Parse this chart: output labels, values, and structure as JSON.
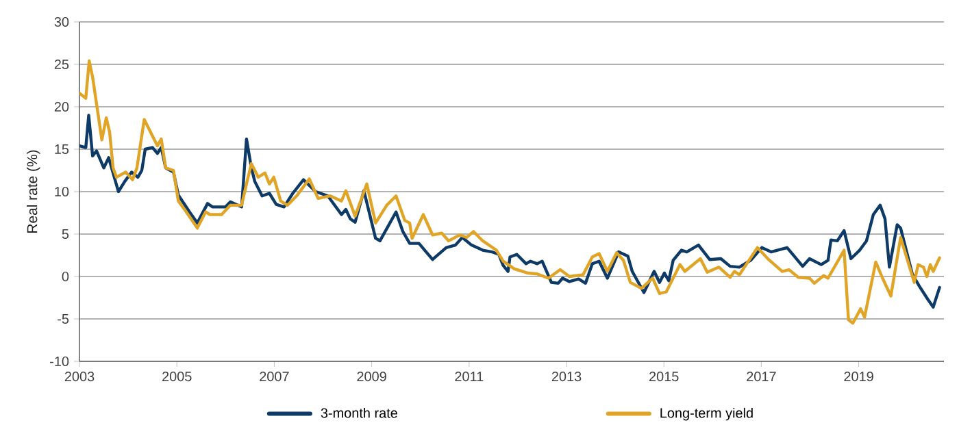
{
  "chart_data": {
    "type": "line",
    "ylabel": "Real rate (%)",
    "xlim": [
      2003,
      2020.75
    ],
    "xticks": [
      2003,
      2005,
      2007,
      2009,
      2011,
      2013,
      2015,
      2017,
      2019
    ],
    "ylim": [
      -10,
      30
    ],
    "yticks": [
      -10,
      -5,
      0,
      5,
      10,
      15,
      20,
      25,
      30
    ],
    "grid": "y",
    "legend": "bottom",
    "line_style": "solid",
    "series": [
      {
        "name": "3-month rate",
        "color": "#0d3a66",
        "x": [
          2003.0,
          2003.13,
          2003.19,
          2003.27,
          2003.35,
          2003.5,
          2003.6,
          2003.8,
          2003.93,
          2004.07,
          2004.2,
          2004.28,
          2004.35,
          2004.5,
          2004.6,
          2004.68,
          2004.77,
          2004.93,
          2005.03,
          2005.26,
          2005.42,
          2005.63,
          2005.73,
          2006.0,
          2006.1,
          2006.33,
          2006.43,
          2006.53,
          2006.6,
          2006.75,
          2006.9,
          2007.04,
          2007.2,
          2007.38,
          2007.6,
          2007.85,
          2008.1,
          2008.38,
          2008.47,
          2008.56,
          2008.66,
          2008.84,
          2009.08,
          2009.17,
          2009.5,
          2009.64,
          2009.78,
          2009.97,
          2010.25,
          2010.53,
          2010.72,
          2010.86,
          2011.05,
          2011.28,
          2011.47,
          2011.61,
          2011.7,
          2011.8,
          2011.84,
          2011.98,
          2012.17,
          2012.26,
          2012.4,
          2012.5,
          2012.69,
          2012.83,
          2012.92,
          2013.06,
          2013.25,
          2013.39,
          2013.53,
          2013.67,
          2013.84,
          2014.07,
          2014.26,
          2014.35,
          2014.59,
          2014.8,
          2014.91,
          2015.01,
          2015.1,
          2015.19,
          2015.36,
          2015.47,
          2015.71,
          2015.94,
          2016.17,
          2016.36,
          2016.55,
          2016.78,
          2017.01,
          2017.2,
          2017.53,
          2017.85,
          2017.99,
          2018.23,
          2018.37,
          2018.43,
          2018.56,
          2018.7,
          2018.84,
          2019.02,
          2019.16,
          2019.3,
          2019.44,
          2019.54,
          2019.63,
          2019.79,
          2019.86,
          2020.1,
          2020.24,
          2020.42,
          2020.53,
          2020.66
        ],
        "values": [
          15.4,
          15.2,
          19.0,
          14.2,
          14.8,
          12.8,
          14.0,
          10.0,
          11.2,
          12.3,
          11.7,
          12.5,
          15.0,
          15.2,
          14.5,
          15.2,
          12.8,
          12.3,
          9.6,
          7.6,
          6.3,
          8.6,
          8.2,
          8.2,
          8.8,
          8.2,
          16.2,
          12.8,
          11.2,
          9.5,
          9.8,
          8.5,
          8.2,
          9.8,
          11.4,
          10.0,
          9.5,
          7.3,
          7.9,
          6.8,
          6.4,
          10.1,
          4.5,
          4.2,
          7.6,
          5.3,
          3.9,
          3.9,
          2.0,
          3.4,
          3.7,
          4.6,
          3.7,
          3.1,
          2.9,
          2.6,
          1.3,
          0.6,
          2.3,
          2.6,
          1.5,
          1.8,
          1.5,
          1.8,
          -0.7,
          -0.8,
          -0.2,
          -0.6,
          -0.3,
          -0.8,
          1.5,
          1.8,
          -0.2,
          2.9,
          2.4,
          0.6,
          -1.9,
          0.6,
          -0.7,
          0.4,
          -0.5,
          1.9,
          3.1,
          2.9,
          3.7,
          2.0,
          2.1,
          1.2,
          1.1,
          1.9,
          3.4,
          2.9,
          3.4,
          1.2,
          2.1,
          1.4,
          1.9,
          4.3,
          4.2,
          5.4,
          2.1,
          3.1,
          4.2,
          7.3,
          8.4,
          6.8,
          1.1,
          6.1,
          5.7,
          0.3,
          -1.1,
          -2.7,
          -3.6,
          -1.3
        ]
      },
      {
        "name": "Long-term yield",
        "color": "#e0a526",
        "x": [
          2003.0,
          2003.13,
          2003.2,
          2003.27,
          2003.37,
          2003.46,
          2003.55,
          2003.62,
          2003.69,
          2003.76,
          2003.95,
          2004.09,
          2004.18,
          2004.33,
          2004.47,
          2004.6,
          2004.68,
          2004.77,
          2004.93,
          2005.03,
          2005.17,
          2005.42,
          2005.59,
          2005.68,
          2005.92,
          2006.1,
          2006.33,
          2006.43,
          2006.53,
          2006.67,
          2006.81,
          2006.9,
          2006.99,
          2007.13,
          2007.27,
          2007.46,
          2007.72,
          2007.9,
          2008.15,
          2008.38,
          2008.47,
          2008.66,
          2008.9,
          2009.08,
          2009.31,
          2009.5,
          2009.68,
          2009.78,
          2009.83,
          2010.06,
          2010.25,
          2010.44,
          2010.58,
          2010.81,
          2010.95,
          2011.09,
          2011.28,
          2011.56,
          2011.7,
          2011.93,
          2012.21,
          2012.4,
          2012.63,
          2012.87,
          2013.06,
          2013.34,
          2013.53,
          2013.67,
          2013.84,
          2014.03,
          2014.17,
          2014.31,
          2014.54,
          2014.77,
          2014.91,
          2015.05,
          2015.33,
          2015.43,
          2015.75,
          2015.89,
          2016.13,
          2016.36,
          2016.45,
          2016.55,
          2016.92,
          2017.15,
          2017.43,
          2017.57,
          2017.76,
          2017.99,
          2018.09,
          2018.28,
          2018.37,
          2018.7,
          2018.79,
          2018.88,
          2019.04,
          2019.12,
          2019.35,
          2019.49,
          2019.66,
          2019.86,
          2020.14,
          2020.22,
          2020.33,
          2020.4,
          2020.47,
          2020.53,
          2020.66
        ],
        "values": [
          21.6,
          21.0,
          25.4,
          23.5,
          19.6,
          16.1,
          18.7,
          17.0,
          12.8,
          11.7,
          12.3,
          11.4,
          12.8,
          18.5,
          16.9,
          15.4,
          16.2,
          12.8,
          12.5,
          8.9,
          7.8,
          5.7,
          7.6,
          7.3,
          7.3,
          8.4,
          8.4,
          10.9,
          13.3,
          11.7,
          12.2,
          10.9,
          11.7,
          8.9,
          8.4,
          9.5,
          11.5,
          9.2,
          9.5,
          8.9,
          10.1,
          7.1,
          10.9,
          6.3,
          8.4,
          9.5,
          6.6,
          6.3,
          4.5,
          7.3,
          4.9,
          5.1,
          4.2,
          4.9,
          4.6,
          5.3,
          4.2,
          3.1,
          1.8,
          0.9,
          0.4,
          0.3,
          -0.2,
          0.8,
          0.0,
          0.2,
          2.3,
          2.7,
          0.6,
          2.8,
          1.9,
          -0.7,
          -1.4,
          -0.2,
          -2.0,
          -1.8,
          1.4,
          0.6,
          2.1,
          0.5,
          1.1,
          -0.1,
          0.6,
          0.2,
          3.4,
          2.0,
          0.6,
          0.8,
          -0.1,
          -0.2,
          -0.8,
          0.1,
          -0.2,
          3.1,
          -5.1,
          -5.5,
          -3.8,
          -4.8,
          1.7,
          -0.2,
          -2.3,
          4.6,
          -0.7,
          1.4,
          1.1,
          0.0,
          1.4,
          0.6,
          2.2
        ]
      }
    ]
  }
}
